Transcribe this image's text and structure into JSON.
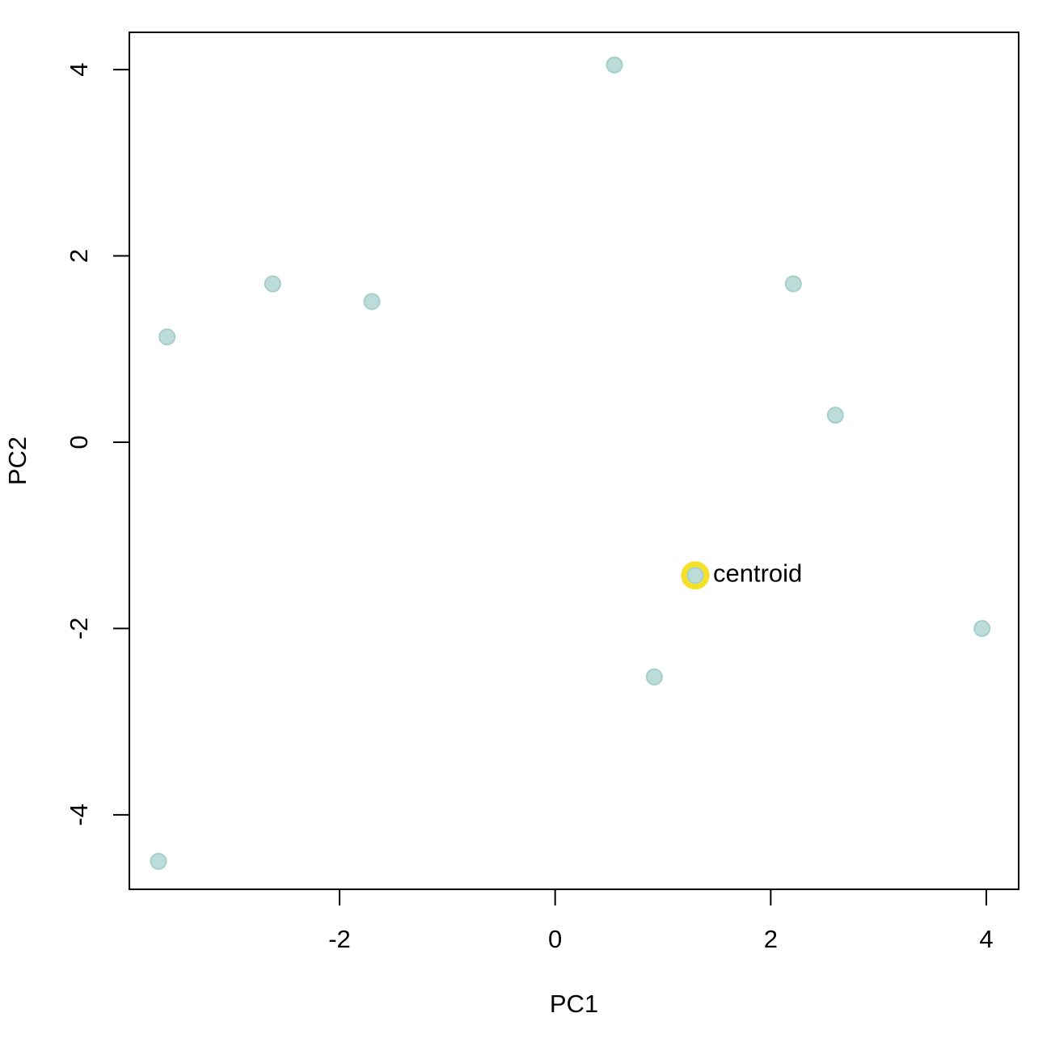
{
  "chart_data": {
    "type": "scatter",
    "title": "",
    "xlabel": "PC1",
    "ylabel": "PC2",
    "xlim": [
      -3.95,
      4.3
    ],
    "ylim": [
      -4.8,
      4.4
    ],
    "xticks": [
      -2,
      0,
      2,
      4
    ],
    "yticks": [
      -4,
      -2,
      0,
      2,
      4
    ],
    "grid": false,
    "points": [
      {
        "x": 0.55,
        "y": 4.05
      },
      {
        "x": -2.62,
        "y": 1.7
      },
      {
        "x": -1.7,
        "y": 1.51
      },
      {
        "x": -3.6,
        "y": 1.13
      },
      {
        "x": 2.21,
        "y": 1.7
      },
      {
        "x": 2.6,
        "y": 0.29
      },
      {
        "x": 0.92,
        "y": -2.52
      },
      {
        "x": 3.96,
        "y": -2.0
      },
      {
        "x": -3.68,
        "y": -4.5
      }
    ],
    "centroid": {
      "x": 1.3,
      "y": -1.43,
      "label": "centroid"
    },
    "colors": {
      "point_fill": "#bcdcda",
      "point_stroke": "#a6cfcc",
      "highlight": "#f5e027"
    }
  }
}
